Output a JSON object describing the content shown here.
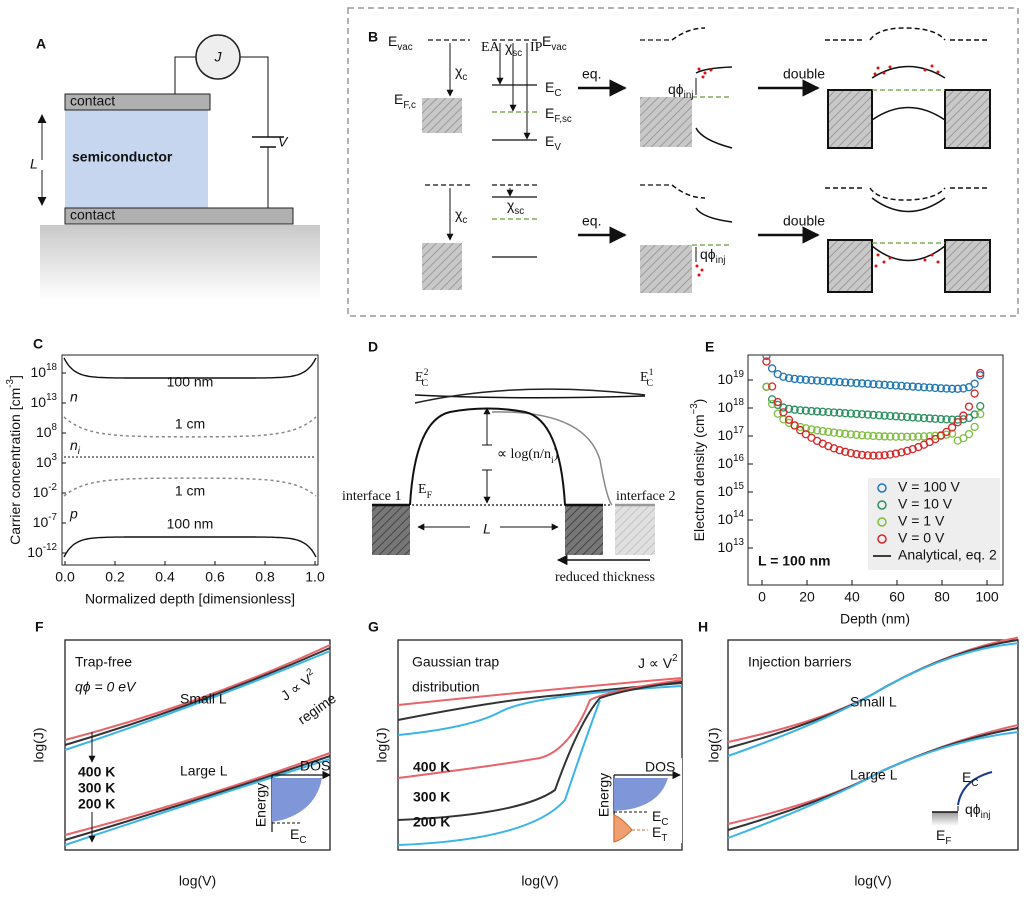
{
  "panel_a": {
    "letter": "A",
    "j": "J",
    "v": "V",
    "l": "L",
    "contact_top": "contact",
    "semiconductor": "semiconductor",
    "contact_bottom": "contact"
  },
  "panel_b": {
    "letter": "B",
    "e_vac_left": {
      "main": "E",
      "sub": "vac"
    },
    "chi_c_top": {
      "main": "χ",
      "sub": "c"
    },
    "e_fc": {
      "main": "E",
      "sub": "F,c"
    },
    "ea": "EA",
    "chi_sc_top": {
      "main": "χ",
      "sub": "sc"
    },
    "ip": "IP",
    "e_vac_right": {
      "main": "E",
      "sub": "vac"
    },
    "e_c": {
      "main": "E",
      "sub": "C"
    },
    "e_fsc": {
      "main": "E",
      "sub": "F,sc"
    },
    "e_v": {
      "main": "E",
      "sub": "V"
    },
    "eq_top": "eq.",
    "qphi_top": {
      "main": "qϕ",
      "sub": "inj"
    },
    "double_top": "double",
    "chi_c_bottom": {
      "main": "χ",
      "sub": "c"
    },
    "chi_sc_bottom": {
      "main": "χ",
      "sub": "sc"
    },
    "eq_bottom": "eq.",
    "qphi_bottom": {
      "main": "qϕ",
      "sub": "inj"
    },
    "double_bottom": "double"
  },
  "panel_c": {
    "letter": "C",
    "y_label": {
      "main": "Carrier concentration [cm",
      "sup": "-3",
      "tail": "]"
    },
    "x_label": "Normalized depth [dimensionless]",
    "yticks": [
      {
        "main": "10",
        "sup": "18"
      },
      {
        "main": "10",
        "sup": "13"
      },
      {
        "main": "10",
        "sup": "8"
      },
      {
        "main": "10",
        "sup": "3"
      },
      {
        "main": "10",
        "sup": "-2"
      },
      {
        "main": "10",
        "sup": "-7"
      },
      {
        "main": "10",
        "sup": "-12"
      }
    ],
    "xticks": [
      "0.0",
      "0.2",
      "0.4",
      "0.6",
      "0.8",
      "1.0"
    ],
    "curve_labels": {
      "n_100nm": "100 nm",
      "n": "n",
      "n_1cm": "1 cm",
      "ni": {
        "main": "n",
        "sub": "i"
      },
      "p_1cm": "1 cm",
      "p": "p",
      "p_100nm": "100 nm"
    }
  },
  "panel_d": {
    "letter": "D",
    "ec2": {
      "main": "E",
      "sup": "2",
      "sub": "C"
    },
    "ec1": {
      "main": "E",
      "sup": "1",
      "sub": "C"
    },
    "log_label": {
      "main": "∝ log(n/n",
      "sub": "i",
      "tail": ")"
    },
    "ef": {
      "main": "E",
      "sub": "F"
    },
    "interface1": "interface 1",
    "interface2": "interface 2",
    "l": "L",
    "reduced": "reduced thickness"
  },
  "panel_e": {
    "letter": "E",
    "y_label": {
      "main": "Electron density (cm",
      "sup": "−3",
      "tail": ")"
    },
    "x_label": "Depth (nm)",
    "yticks": [
      {
        "main": "10",
        "sup": "19"
      },
      {
        "main": "10",
        "sup": "18"
      },
      {
        "main": "10",
        "sup": "17"
      },
      {
        "main": "10",
        "sup": "16"
      },
      {
        "main": "10",
        "sup": "15"
      },
      {
        "main": "10",
        "sup": "14"
      },
      {
        "main": "10",
        "sup": "13"
      }
    ],
    "xticks": [
      0,
      20,
      40,
      60,
      80,
      100
    ],
    "legend": [
      {
        "name": "V = 100 V",
        "color": "#1f77b4"
      },
      {
        "name": "V = 10 V",
        "color": "#2a9060"
      },
      {
        "name": "V = 1 V",
        "color": "#7fbf3f"
      },
      {
        "name": "V = 0 V",
        "color": "#d62728"
      },
      {
        "name": "Analytical, eq. 2",
        "color": "#000000"
      }
    ],
    "l_label": "L = 100 nm"
  },
  "panel_f": {
    "letter": "F",
    "title": "Trap-free",
    "subtitle": "qϕ = 0 eV",
    "small": "Small L",
    "large": "Large L",
    "regime": {
      "main": "J ∝ V",
      "sup": "2"
    },
    "regime2": "regime",
    "t400": "400 K",
    "t300": "300 K",
    "t200": "200 K",
    "dos": "DOS",
    "energy": "Energy",
    "ec": {
      "main": "E",
      "sub": "C"
    },
    "y_label": "log(J)",
    "x_label": "log(V)"
  },
  "panel_g": {
    "letter": "G",
    "title": "Gaussian trap",
    "title2": "distribution",
    "regime": {
      "main": "J ∝ V",
      "sup": "2"
    },
    "t400": "400 K",
    "t300": "300 K",
    "t200": "200 K",
    "dos": "DOS",
    "energy": "Energy",
    "ec": {
      "main": "E",
      "sub": "C"
    },
    "et": {
      "main": "E",
      "sub": "T"
    },
    "y_label": "log(J)",
    "x_label": "log(V)"
  },
  "panel_h": {
    "letter": "H",
    "title": "Injection barriers",
    "small": "Small L",
    "large": "Large L",
    "ec": {
      "main": "E",
      "sub": "C"
    },
    "qphi": {
      "main": "qϕ",
      "sub": "inj"
    },
    "ef": {
      "main": "E",
      "sub": "F"
    },
    "y_label": "log(J)",
    "x_label": "log(V)"
  }
}
